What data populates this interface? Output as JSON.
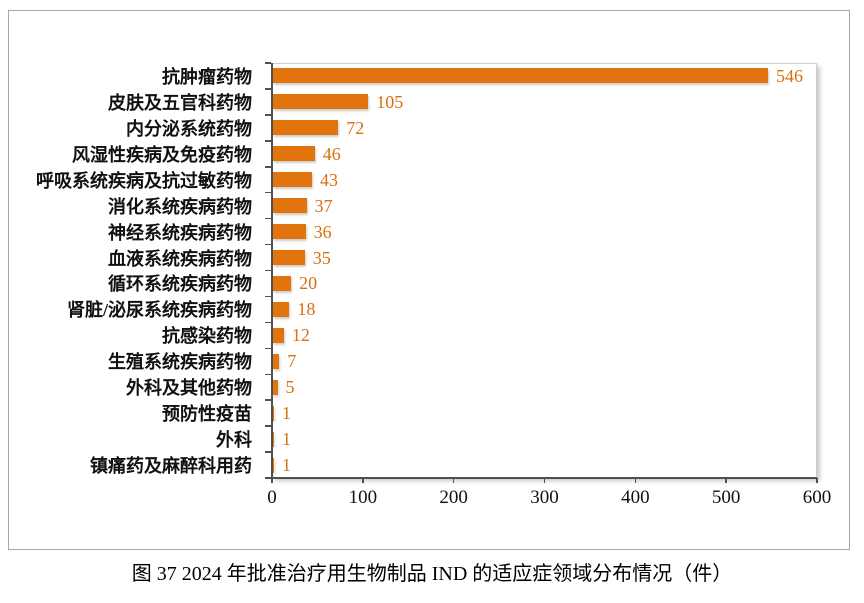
{
  "caption": "图 37  2024 年批准治疗用生物制品 IND 的适应症领域分布情况（件）",
  "chart_data": {
    "type": "bar",
    "orientation": "horizontal",
    "title": "",
    "xlabel": "",
    "ylabel": "",
    "categories": [
      "抗肿瘤药物",
      "皮肤及五官科药物",
      "内分泌系统药物",
      "风湿性疾病及免疫药物",
      "呼吸系统疾病及抗过敏药物",
      "消化系统疾病药物",
      "神经系统疾病药物",
      "血液系统疾病药物",
      "循环系统疾病药物",
      "肾脏/泌尿系统疾病药物",
      "抗感染药物",
      "生殖系统疾病药物",
      "外科及其他药物",
      "预防性疫苗",
      "外科",
      "镇痛药及麻醉科用药"
    ],
    "values": [
      546,
      105,
      72,
      46,
      43,
      37,
      36,
      35,
      20,
      18,
      12,
      7,
      5,
      1,
      1,
      1
    ],
    "xlim": [
      0,
      600
    ],
    "x_ticks": [
      0,
      100,
      200,
      300,
      400,
      500,
      600
    ],
    "grid": false,
    "legend": null,
    "bar_color": "#E2740E",
    "value_label_color": "#D8700F"
  }
}
